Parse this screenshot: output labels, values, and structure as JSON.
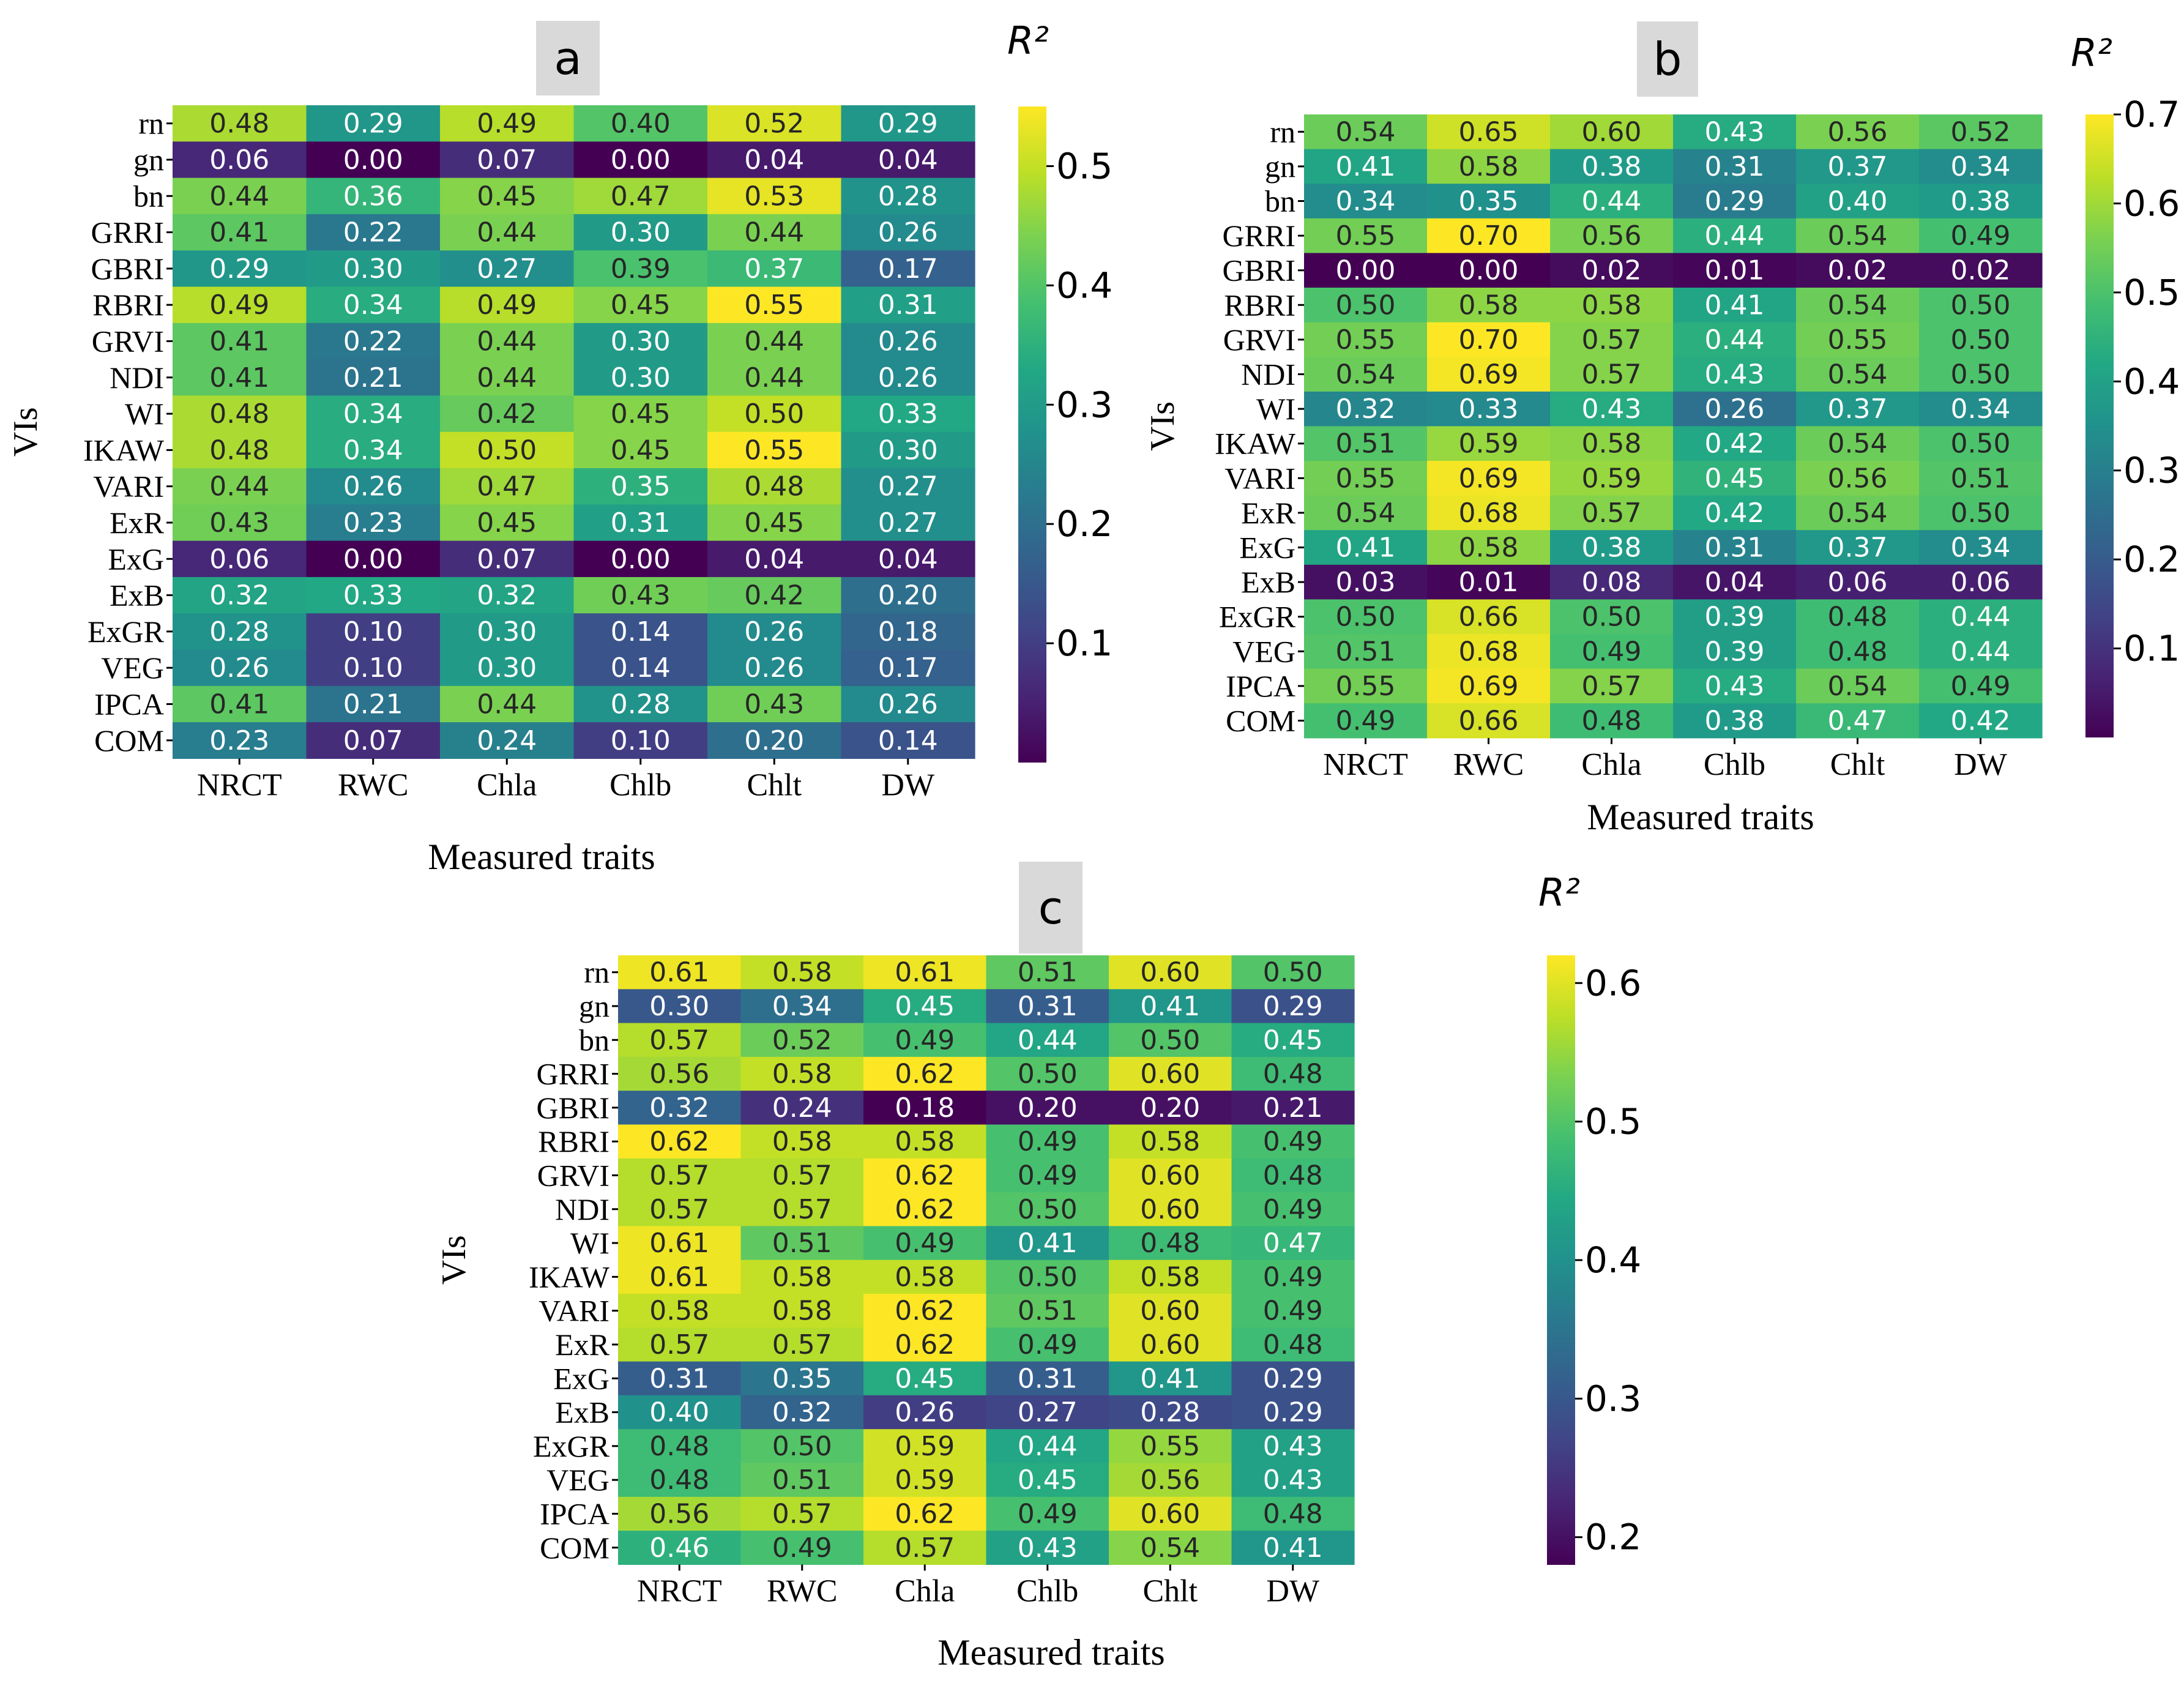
{
  "figure": {
    "panel_labels": [
      "a",
      "b",
      "c"
    ],
    "colorbar_title": "R²"
  },
  "chart_data": [
    {
      "type": "heatmap",
      "panel": "a",
      "xlabel": "Measured traits",
      "ylabel": "VIs",
      "colorbar_label": "R²",
      "vmin": 0.0,
      "vmax": 0.55,
      "colorbar_ticks": [
        0.1,
        0.2,
        0.3,
        0.4,
        0.5
      ],
      "x_categories": [
        "NRCT",
        "RWC",
        "Chla",
        "Chlb",
        "Chlt",
        "DW"
      ],
      "y_categories": [
        "rn",
        "gn",
        "bn",
        "GRRI",
        "GBRI",
        "RBRI",
        "GRVI",
        "NDI",
        "WI",
        "IKAW",
        "VARI",
        "ExR",
        "ExG",
        "ExB",
        "ExGR",
        "VEG",
        "IPCA",
        "COM"
      ],
      "values": [
        [
          0.48,
          0.29,
          0.49,
          0.4,
          0.52,
          0.29
        ],
        [
          0.06,
          0.0,
          0.07,
          0.0,
          0.04,
          0.04
        ],
        [
          0.44,
          0.36,
          0.45,
          0.47,
          0.53,
          0.28
        ],
        [
          0.41,
          0.22,
          0.44,
          0.3,
          0.44,
          0.26
        ],
        [
          0.29,
          0.3,
          0.27,
          0.39,
          0.37,
          0.17
        ],
        [
          0.49,
          0.34,
          0.49,
          0.45,
          0.55,
          0.31
        ],
        [
          0.41,
          0.22,
          0.44,
          0.3,
          0.44,
          0.26
        ],
        [
          0.41,
          0.21,
          0.44,
          0.3,
          0.44,
          0.26
        ],
        [
          0.48,
          0.34,
          0.42,
          0.45,
          0.5,
          0.33
        ],
        [
          0.48,
          0.34,
          0.5,
          0.45,
          0.55,
          0.3
        ],
        [
          0.44,
          0.26,
          0.47,
          0.35,
          0.48,
          0.27
        ],
        [
          0.43,
          0.23,
          0.45,
          0.31,
          0.45,
          0.27
        ],
        [
          0.06,
          0.0,
          0.07,
          0.0,
          0.04,
          0.04
        ],
        [
          0.32,
          0.33,
          0.32,
          0.43,
          0.42,
          0.2
        ],
        [
          0.28,
          0.1,
          0.3,
          0.14,
          0.26,
          0.18
        ],
        [
          0.26,
          0.1,
          0.3,
          0.14,
          0.26,
          0.17
        ],
        [
          0.41,
          0.21,
          0.44,
          0.28,
          0.43,
          0.26
        ],
        [
          0.23,
          0.07,
          0.24,
          0.1,
          0.2,
          0.14
        ]
      ]
    },
    {
      "type": "heatmap",
      "panel": "b",
      "xlabel": "Measured traits",
      "ylabel": "VIs",
      "colorbar_label": "R²",
      "vmin": 0.0,
      "vmax": 0.7,
      "colorbar_ticks": [
        0.1,
        0.2,
        0.3,
        0.4,
        0.5,
        0.6,
        0.7
      ],
      "x_categories": [
        "NRCT",
        "RWC",
        "Chla",
        "Chlb",
        "Chlt",
        "DW"
      ],
      "y_categories": [
        "rn",
        "gn",
        "bn",
        "GRRI",
        "GBRI",
        "RBRI",
        "GRVI",
        "NDI",
        "WI",
        "IKAW",
        "VARI",
        "ExR",
        "ExG",
        "ExB",
        "ExGR",
        "VEG",
        "IPCA",
        "COM"
      ],
      "values": [
        [
          0.54,
          0.65,
          0.6,
          0.43,
          0.56,
          0.52
        ],
        [
          0.41,
          0.58,
          0.38,
          0.31,
          0.37,
          0.34
        ],
        [
          0.34,
          0.35,
          0.44,
          0.29,
          0.4,
          0.38
        ],
        [
          0.55,
          0.7,
          0.56,
          0.44,
          0.54,
          0.49
        ],
        [
          0.0,
          0.0,
          0.02,
          0.01,
          0.02,
          0.02
        ],
        [
          0.5,
          0.58,
          0.58,
          0.41,
          0.54,
          0.5
        ],
        [
          0.55,
          0.7,
          0.57,
          0.44,
          0.55,
          0.5
        ],
        [
          0.54,
          0.69,
          0.57,
          0.43,
          0.54,
          0.5
        ],
        [
          0.32,
          0.33,
          0.43,
          0.26,
          0.37,
          0.34
        ],
        [
          0.51,
          0.59,
          0.58,
          0.42,
          0.54,
          0.5
        ],
        [
          0.55,
          0.69,
          0.59,
          0.45,
          0.56,
          0.51
        ],
        [
          0.54,
          0.68,
          0.57,
          0.42,
          0.54,
          0.5
        ],
        [
          0.41,
          0.58,
          0.38,
          0.31,
          0.37,
          0.34
        ],
        [
          0.03,
          0.01,
          0.08,
          0.04,
          0.06,
          0.06
        ],
        [
          0.5,
          0.66,
          0.5,
          0.39,
          0.48,
          0.44
        ],
        [
          0.51,
          0.68,
          0.49,
          0.39,
          0.48,
          0.44
        ],
        [
          0.55,
          0.69,
          0.57,
          0.43,
          0.54,
          0.49
        ],
        [
          0.49,
          0.66,
          0.48,
          0.38,
          0.47,
          0.42
        ]
      ]
    },
    {
      "type": "heatmap",
      "panel": "c",
      "xlabel": "Measured traits",
      "ylabel": "VIs",
      "colorbar_label": "R²",
      "vmin": 0.18,
      "vmax": 0.62,
      "colorbar_ticks": [
        0.2,
        0.3,
        0.4,
        0.5,
        0.6
      ],
      "x_categories": [
        "NRCT",
        "RWC",
        "Chla",
        "Chlb",
        "Chlt",
        "DW"
      ],
      "y_categories": [
        "rn",
        "gn",
        "bn",
        "GRRI",
        "GBRI",
        "RBRI",
        "GRVI",
        "NDI",
        "WI",
        "IKAW",
        "VARI",
        "ExR",
        "ExG",
        "ExB",
        "ExGR",
        "VEG",
        "IPCA",
        "COM"
      ],
      "values": [
        [
          0.61,
          0.58,
          0.61,
          0.51,
          0.6,
          0.5
        ],
        [
          0.3,
          0.34,
          0.45,
          0.31,
          0.41,
          0.29
        ],
        [
          0.57,
          0.52,
          0.49,
          0.44,
          0.5,
          0.45
        ],
        [
          0.56,
          0.58,
          0.62,
          0.5,
          0.6,
          0.48
        ],
        [
          0.32,
          0.24,
          0.18,
          0.2,
          0.2,
          0.21
        ],
        [
          0.62,
          0.58,
          0.58,
          0.49,
          0.58,
          0.49
        ],
        [
          0.57,
          0.57,
          0.62,
          0.49,
          0.6,
          0.48
        ],
        [
          0.57,
          0.57,
          0.62,
          0.5,
          0.6,
          0.49
        ],
        [
          0.61,
          0.51,
          0.49,
          0.41,
          0.48,
          0.47
        ],
        [
          0.61,
          0.58,
          0.58,
          0.5,
          0.58,
          0.49
        ],
        [
          0.58,
          0.58,
          0.62,
          0.51,
          0.6,
          0.49
        ],
        [
          0.57,
          0.57,
          0.62,
          0.49,
          0.6,
          0.48
        ],
        [
          0.31,
          0.35,
          0.45,
          0.31,
          0.41,
          0.29
        ],
        [
          0.4,
          0.32,
          0.26,
          0.27,
          0.28,
          0.29
        ],
        [
          0.48,
          0.5,
          0.59,
          0.44,
          0.55,
          0.43
        ],
        [
          0.48,
          0.51,
          0.59,
          0.45,
          0.56,
          0.43
        ],
        [
          0.56,
          0.57,
          0.62,
          0.49,
          0.6,
          0.48
        ],
        [
          0.46,
          0.49,
          0.57,
          0.43,
          0.54,
          0.41
        ]
      ]
    }
  ]
}
